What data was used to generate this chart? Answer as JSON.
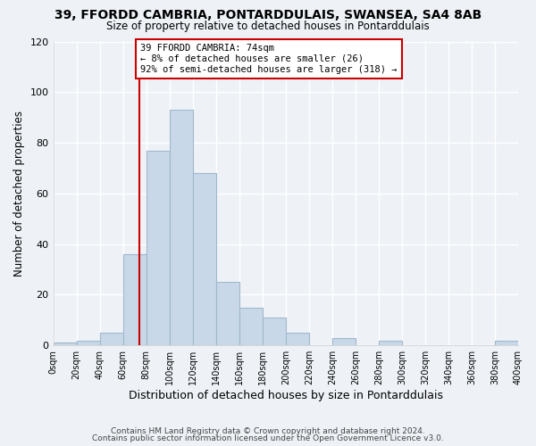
{
  "title": "39, FFORDD CAMBRIA, PONTARDDULAIS, SWANSEA, SA4 8AB",
  "subtitle": "Size of property relative to detached houses in Pontarddulais",
  "xlabel": "Distribution of detached houses by size in Pontarddulais",
  "ylabel": "Number of detached properties",
  "bin_edges": [
    0,
    20,
    40,
    60,
    80,
    100,
    120,
    140,
    160,
    180,
    200,
    220,
    240,
    260,
    280,
    300,
    320,
    340,
    360,
    380,
    400
  ],
  "counts": [
    1,
    2,
    5,
    36,
    77,
    93,
    68,
    25,
    15,
    11,
    5,
    0,
    3,
    0,
    2,
    0,
    0,
    0,
    0,
    2
  ],
  "bar_color": "#c8d8e8",
  "bar_edge_color": "#a0b8cc",
  "vline_x": 74,
  "vline_color": "#cc0000",
  "annotation_text": "39 FFORDD CAMBRIA: 74sqm\n← 8% of detached houses are smaller (26)\n92% of semi-detached houses are larger (318) →",
  "annotation_box_color": "#ffffff",
  "annotation_box_edge_color": "#cc0000",
  "ylim": [
    0,
    120
  ],
  "xlim": [
    0,
    400
  ],
  "tick_step": 20,
  "footer_line1": "Contains HM Land Registry data © Crown copyright and database right 2024.",
  "footer_line2": "Contains public sector information licensed under the Open Government Licence v3.0.",
  "background_color": "#eef2f7",
  "grid_color": "#ffffff"
}
